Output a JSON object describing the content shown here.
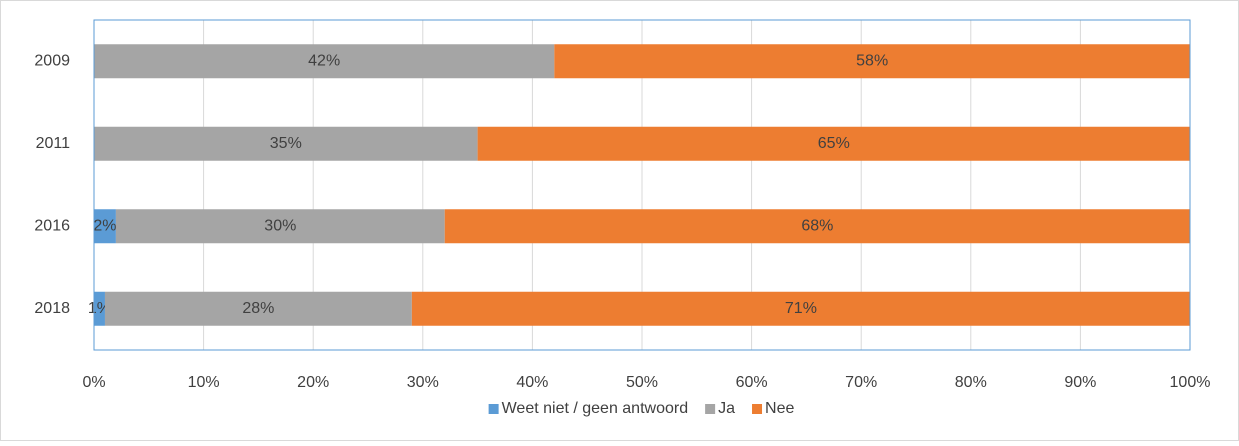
{
  "chart_data": {
    "type": "stacked_bar_horizontal",
    "categories": [
      "2009",
      "2011",
      "2016",
      "2018"
    ],
    "series": [
      {
        "name": "Weet niet / geen antwoord",
        "color": "#5b9bd5",
        "values": [
          null,
          null,
          2,
          1
        ],
        "value_labels": [
          null,
          null,
          "2%",
          "1%"
        ]
      },
      {
        "name": "Ja",
        "color": "#a5a5a5",
        "values": [
          42,
          35,
          30,
          28
        ],
        "value_labels": [
          "42%",
          "35%",
          "30%",
          "28%"
        ]
      },
      {
        "name": "Nee",
        "color": "#ed7d31",
        "values": [
          58,
          65,
          68,
          71
        ],
        "value_labels": [
          "58%",
          "65%",
          "68%",
          "71%"
        ]
      }
    ],
    "xlim": [
      0,
      100
    ],
    "xticks": [
      {
        "value": 0,
        "label": "0%"
      },
      {
        "value": 10,
        "label": "10%"
      },
      {
        "value": 20,
        "label": "20%"
      },
      {
        "value": 30,
        "label": "30%"
      },
      {
        "value": 40,
        "label": "40%"
      },
      {
        "value": 50,
        "label": "50%"
      },
      {
        "value": 60,
        "label": "60%"
      },
      {
        "value": 70,
        "label": "70%"
      },
      {
        "value": 80,
        "label": "80%"
      },
      {
        "value": 90,
        "label": "90%"
      },
      {
        "value": 100,
        "label": "100%"
      }
    ],
    "grid": true,
    "legend": "bottom"
  }
}
